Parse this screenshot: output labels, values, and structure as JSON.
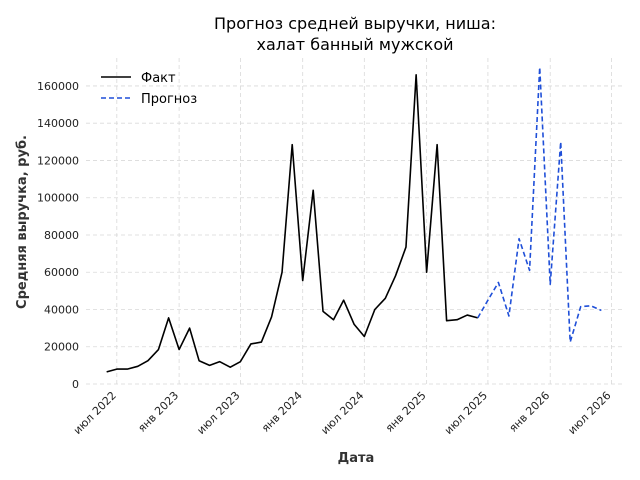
{
  "chart_data": {
    "type": "line",
    "title_line1": "Прогноз средней выручки, ниша:",
    "title_line2": "халат банный мужской",
    "xlabel": "Дата",
    "ylabel": "Средняя выручка, руб.",
    "x_ticks": [
      {
        "date": "2022-07-01",
        "label": "июл 2022"
      },
      {
        "date": "2023-01-01",
        "label": "янв 2023"
      },
      {
        "date": "2023-07-01",
        "label": "июл 2023"
      },
      {
        "date": "2024-01-01",
        "label": "янв 2024"
      },
      {
        "date": "2024-07-01",
        "label": "июл 2024"
      },
      {
        "date": "2025-01-01",
        "label": "янв 2025"
      },
      {
        "date": "2025-07-01",
        "label": "июл 2025"
      },
      {
        "date": "2026-01-01",
        "label": "янв 2026"
      },
      {
        "date": "2026-07-01",
        "label": "июл 2026"
      }
    ],
    "y_ticks": [
      0,
      20000,
      40000,
      60000,
      80000,
      100000,
      120000,
      140000,
      160000
    ],
    "xlim": [
      "2022-04-01",
      "2026-08-01"
    ],
    "ylim": [
      0,
      175000
    ],
    "grid": true,
    "legend_position": "top-left",
    "colors": {
      "fact": "#000000",
      "forecast": "#1f4fd8"
    },
    "series": [
      {
        "name": "Факт",
        "style": "solid",
        "points": [
          [
            "2022-06-01",
            6500
          ],
          [
            "2022-07-01",
            8000
          ],
          [
            "2022-08-01",
            8000
          ],
          [
            "2022-09-01",
            9500
          ],
          [
            "2022-10-01",
            12500
          ],
          [
            "2022-11-01",
            18500
          ],
          [
            "2022-12-01",
            35500
          ],
          [
            "2023-01-01",
            18500
          ],
          [
            "2023-02-01",
            30000
          ],
          [
            "2023-03-01",
            12500
          ],
          [
            "2023-04-01",
            10000
          ],
          [
            "2023-05-01",
            12000
          ],
          [
            "2023-06-01",
            9000
          ],
          [
            "2023-07-01",
            12000
          ],
          [
            "2023-08-01",
            21500
          ],
          [
            "2023-09-01",
            22500
          ],
          [
            "2023-10-01",
            36000
          ],
          [
            "2023-11-01",
            60000
          ],
          [
            "2023-12-01",
            128500
          ],
          [
            "2024-01-01",
            55500
          ],
          [
            "2024-02-01",
            104000
          ],
          [
            "2024-03-01",
            39000
          ],
          [
            "2024-04-01",
            34500
          ],
          [
            "2024-05-01",
            45000
          ],
          [
            "2024-06-01",
            32000
          ],
          [
            "2024-07-01",
            25500
          ],
          [
            "2024-08-01",
            40000
          ],
          [
            "2024-09-01",
            46000
          ],
          [
            "2024-10-01",
            58000
          ],
          [
            "2024-11-01",
            73500
          ],
          [
            "2024-12-01",
            166000
          ],
          [
            "2025-01-01",
            60000
          ],
          [
            "2025-02-01",
            128500
          ],
          [
            "2025-03-01",
            34000
          ],
          [
            "2025-04-01",
            34500
          ],
          [
            "2025-05-01",
            37000
          ],
          [
            "2025-06-01",
            35500
          ]
        ]
      },
      {
        "name": "Прогноз",
        "style": "dashed",
        "points": [
          [
            "2025-06-01",
            35500
          ],
          [
            "2025-07-01",
            45000
          ],
          [
            "2025-08-01",
            54500
          ],
          [
            "2025-09-01",
            36500
          ],
          [
            "2025-10-01",
            78000
          ],
          [
            "2025-11-01",
            61000
          ],
          [
            "2025-12-01",
            170000
          ],
          [
            "2026-01-01",
            53500
          ],
          [
            "2026-02-01",
            130000
          ],
          [
            "2026-03-01",
            22500
          ],
          [
            "2026-04-01",
            41500
          ],
          [
            "2026-05-01",
            42000
          ],
          [
            "2026-06-01",
            39500
          ]
        ]
      }
    ]
  }
}
